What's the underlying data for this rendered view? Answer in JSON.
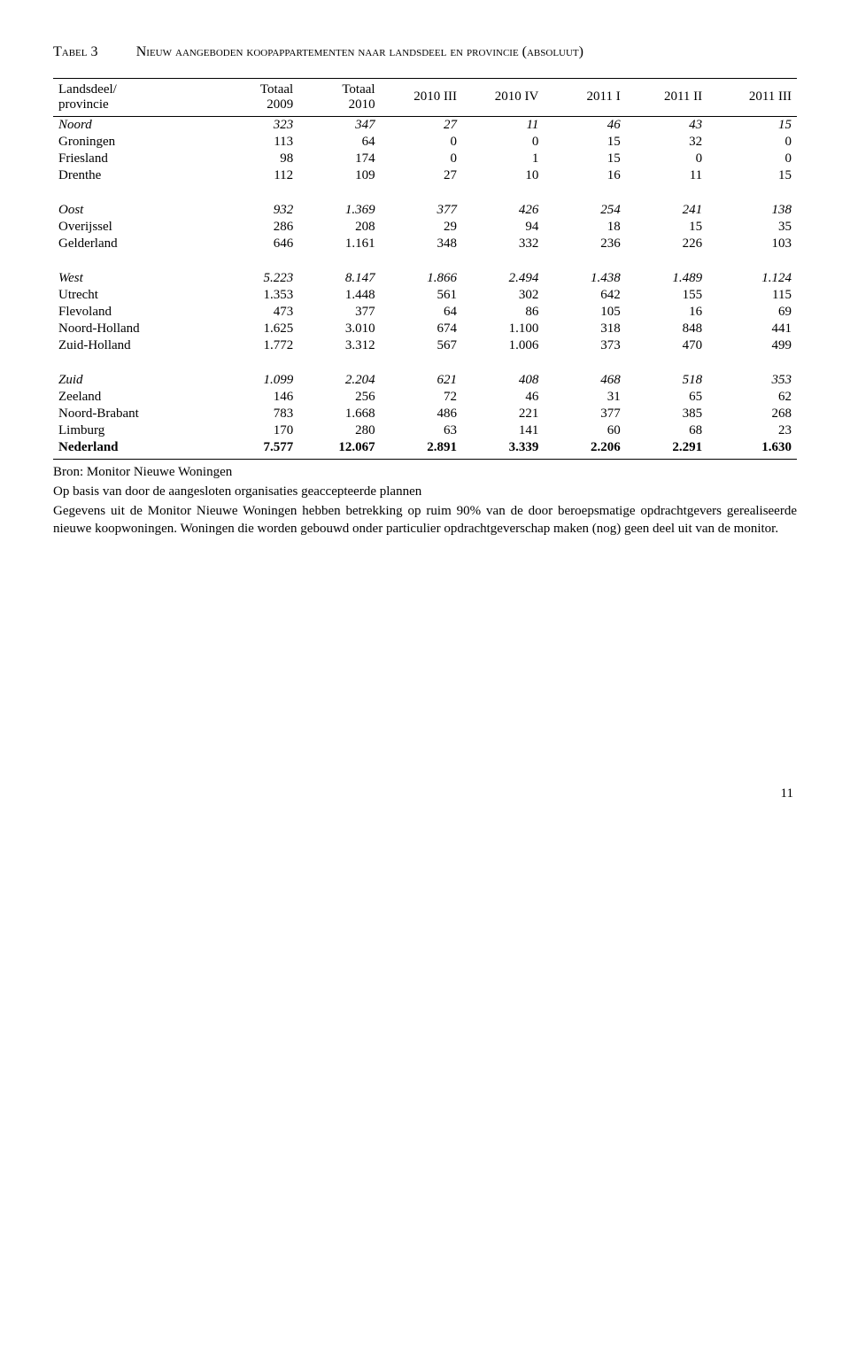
{
  "title_label": "Tabel 3",
  "title_caption": "Nieuw aangeboden koopappartementen naar landsdeel en provincie (absoluut)",
  "headers": [
    "Landsdeel/ provincie",
    "Totaal 2009",
    "Totaal 2010",
    "2010 III",
    "2010 IV",
    "2011 I",
    "2011 II",
    "2011 III"
  ],
  "rows": [
    {
      "cls": "italic",
      "cells": [
        "Noord",
        "323",
        "347",
        "27",
        "11",
        "46",
        "43",
        "15"
      ]
    },
    {
      "cls": "",
      "cells": [
        "Groningen",
        "113",
        "64",
        "0",
        "0",
        "15",
        "32",
        "0"
      ]
    },
    {
      "cls": "",
      "cells": [
        "Friesland",
        "98",
        "174",
        "0",
        "1",
        "15",
        "0",
        "0"
      ]
    },
    {
      "cls": "",
      "cells": [
        "Drenthe",
        "112",
        "109",
        "27",
        "10",
        "16",
        "11",
        "15"
      ]
    },
    {
      "cls": "spacer",
      "cells": [
        "",
        "",
        "",
        "",
        "",
        "",
        "",
        ""
      ]
    },
    {
      "cls": "italic",
      "cells": [
        "Oost",
        "932",
        "1.369",
        "377",
        "426",
        "254",
        "241",
        "138"
      ]
    },
    {
      "cls": "",
      "cells": [
        "Overijssel",
        "286",
        "208",
        "29",
        "94",
        "18",
        "15",
        "35"
      ]
    },
    {
      "cls": "",
      "cells": [
        "Gelderland",
        "646",
        "1.161",
        "348",
        "332",
        "236",
        "226",
        "103"
      ]
    },
    {
      "cls": "spacer",
      "cells": [
        "",
        "",
        "",
        "",
        "",
        "",
        "",
        ""
      ]
    },
    {
      "cls": "italic",
      "cells": [
        "West",
        "5.223",
        "8.147",
        "1.866",
        "2.494",
        "1.438",
        "1.489",
        "1.124"
      ]
    },
    {
      "cls": "",
      "cells": [
        "Utrecht",
        "1.353",
        "1.448",
        "561",
        "302",
        "642",
        "155",
        "115"
      ]
    },
    {
      "cls": "",
      "cells": [
        "Flevoland",
        "473",
        "377",
        "64",
        "86",
        "105",
        "16",
        "69"
      ]
    },
    {
      "cls": "",
      "cells": [
        "Noord-Holland",
        "1.625",
        "3.010",
        "674",
        "1.100",
        "318",
        "848",
        "441"
      ]
    },
    {
      "cls": "",
      "cells": [
        "Zuid-Holland",
        "1.772",
        "3.312",
        "567",
        "1.006",
        "373",
        "470",
        "499"
      ]
    },
    {
      "cls": "spacer",
      "cells": [
        "",
        "",
        "",
        "",
        "",
        "",
        "",
        ""
      ]
    },
    {
      "cls": "italic",
      "cells": [
        "Zuid",
        "1.099",
        "2.204",
        "621",
        "408",
        "468",
        "518",
        "353"
      ]
    },
    {
      "cls": "",
      "cells": [
        "Zeeland",
        "146",
        "256",
        "72",
        "46",
        "31",
        "65",
        "62"
      ]
    },
    {
      "cls": "",
      "cells": [
        "Noord-Brabant",
        "783",
        "1.668",
        "486",
        "221",
        "377",
        "385",
        "268"
      ]
    },
    {
      "cls": "",
      "cells": [
        "Limburg",
        "170",
        "280",
        "63",
        "141",
        "60",
        "68",
        "23"
      ]
    },
    {
      "cls": "bold totalrow",
      "cells": [
        "Nederland",
        "7.577",
        "12.067",
        "2.891",
        "3.339",
        "2.206",
        "2.291",
        "1.630"
      ]
    }
  ],
  "notes": [
    "Bron: Monitor Nieuwe Woningen",
    "Op basis van door de aangesloten organisaties geaccepteerde plannen",
    "Gegevens uit de Monitor Nieuwe Woningen hebben betrekking op ruim 90% van de door beroepsmatige opdrachtgevers gerealiseerde nieuwe koopwoningen. Woningen die worden gebouwd onder particulier opdrachtgeverschap maken (nog) geen deel uit van de monitor."
  ],
  "pagenum": "11",
  "col_widths": [
    "22%",
    "11%",
    "11%",
    "11%",
    "11%",
    "11%",
    "11%",
    "12%"
  ]
}
